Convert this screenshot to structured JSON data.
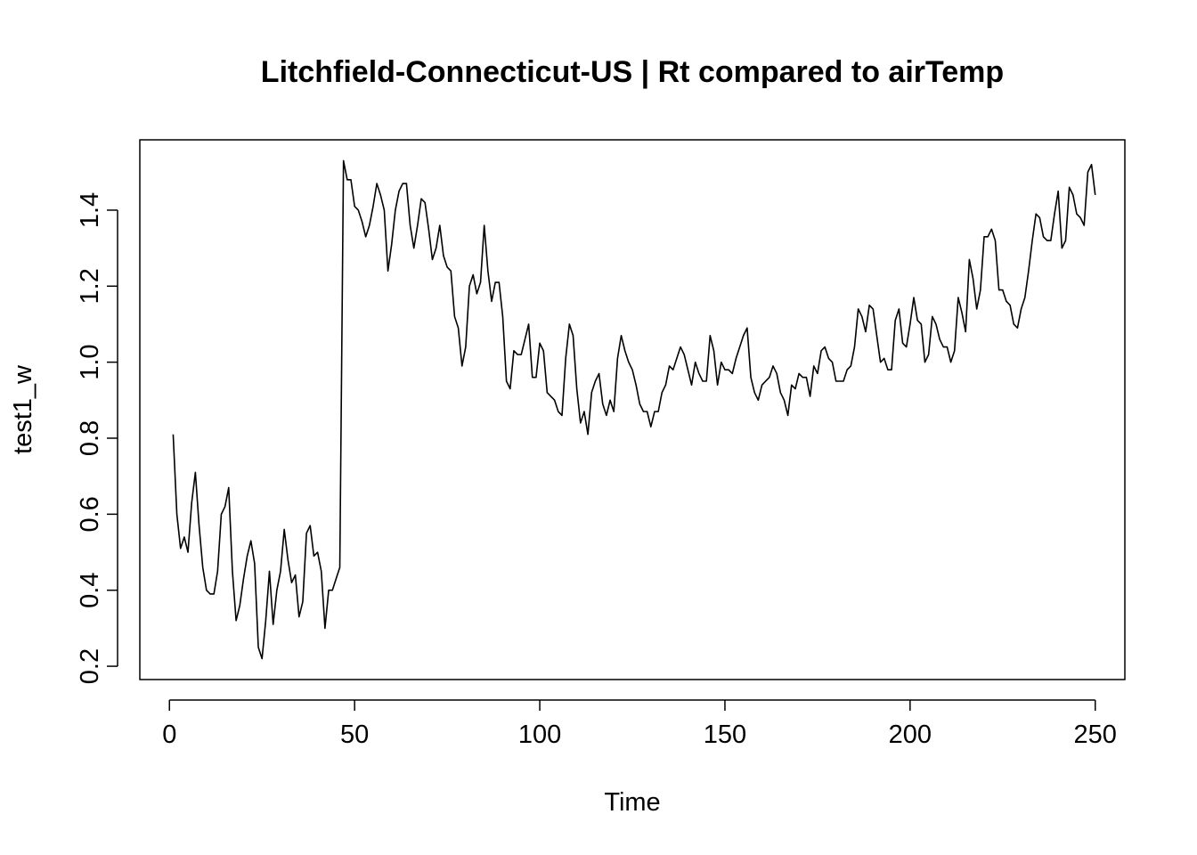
{
  "chart_data": {
    "type": "line",
    "title": "Litchfield-Connecticut-US | Rt compared to airTemp",
    "xlabel": "Time",
    "ylabel": "test1_w",
    "xlim": [
      -8,
      258
    ],
    "ylim": [
      0.165,
      1.585
    ],
    "x_ticks": [
      0,
      50,
      100,
      150,
      200,
      250
    ],
    "y_ticks": [
      0.2,
      0.4,
      0.6,
      0.8,
      1.0,
      1.2,
      1.4
    ],
    "x_tick_labels": [
      "0",
      "50",
      "100",
      "150",
      "200",
      "250"
    ],
    "y_tick_labels": [
      "0.2",
      "0.4",
      "0.6",
      "0.8",
      "1.0",
      "1.2",
      "1.4"
    ],
    "grid": false,
    "legend": "none",
    "series": [
      {
        "color": "#000000",
        "x_start": 1,
        "values": [
          0.81,
          0.6,
          0.51,
          0.54,
          0.5,
          0.63,
          0.71,
          0.57,
          0.46,
          0.4,
          0.39,
          0.39,
          0.45,
          0.6,
          0.62,
          0.67,
          0.45,
          0.32,
          0.36,
          0.43,
          0.49,
          0.53,
          0.47,
          0.25,
          0.22,
          0.32,
          0.45,
          0.31,
          0.4,
          0.45,
          0.56,
          0.48,
          0.42,
          0.44,
          0.33,
          0.37,
          0.55,
          0.57,
          0.49,
          0.5,
          0.45,
          0.3,
          0.4,
          0.4,
          0.43,
          0.46,
          1.53,
          1.48,
          1.48,
          1.41,
          1.4,
          1.37,
          1.33,
          1.36,
          1.41,
          1.47,
          1.44,
          1.4,
          1.24,
          1.31,
          1.4,
          1.45,
          1.47,
          1.47,
          1.36,
          1.3,
          1.36,
          1.43,
          1.42,
          1.35,
          1.27,
          1.3,
          1.36,
          1.28,
          1.25,
          1.24,
          1.12,
          1.09,
          0.99,
          1.04,
          1.2,
          1.23,
          1.18,
          1.21,
          1.36,
          1.24,
          1.16,
          1.21,
          1.21,
          1.12,
          0.95,
          0.93,
          1.03,
          1.02,
          1.02,
          1.06,
          1.1,
          0.96,
          0.96,
          1.05,
          1.03,
          0.92,
          0.91,
          0.9,
          0.87,
          0.86,
          1.01,
          1.1,
          1.07,
          0.93,
          0.84,
          0.87,
          0.81,
          0.92,
          0.95,
          0.97,
          0.89,
          0.86,
          0.9,
          0.87,
          1.01,
          1.07,
          1.03,
          1.0,
          0.98,
          0.94,
          0.89,
          0.87,
          0.87,
          0.83,
          0.87,
          0.87,
          0.92,
          0.94,
          0.99,
          0.98,
          1.01,
          1.04,
          1.02,
          0.98,
          0.94,
          1.0,
          0.97,
          0.95,
          0.95,
          1.07,
          1.03,
          0.94,
          1.0,
          0.98,
          0.98,
          0.97,
          1.01,
          1.04,
          1.07,
          1.09,
          0.96,
          0.92,
          0.9,
          0.94,
          0.95,
          0.96,
          0.99,
          0.97,
          0.92,
          0.9,
          0.86,
          0.94,
          0.93,
          0.97,
          0.96,
          0.96,
          0.91,
          0.99,
          0.97,
          1.03,
          1.04,
          1.01,
          1.0,
          0.95,
          0.95,
          0.95,
          0.98,
          0.99,
          1.04,
          1.14,
          1.12,
          1.08,
          1.15,
          1.14,
          1.07,
          1.0,
          1.01,
          0.98,
          0.98,
          1.11,
          1.14,
          1.05,
          1.04,
          1.1,
          1.17,
          1.11,
          1.1,
          1.0,
          1.02,
          1.12,
          1.1,
          1.06,
          1.04,
          1.04,
          1.0,
          1.03,
          1.17,
          1.13,
          1.08,
          1.27,
          1.22,
          1.14,
          1.19,
          1.33,
          1.33,
          1.35,
          1.32,
          1.19,
          1.19,
          1.16,
          1.15,
          1.1,
          1.09,
          1.14,
          1.17,
          1.24,
          1.32,
          1.39,
          1.38,
          1.33,
          1.32,
          1.32,
          1.39,
          1.45,
          1.3,
          1.32,
          1.46,
          1.44,
          1.39,
          1.38,
          1.36,
          1.5,
          1.52,
          1.44
        ]
      }
    ]
  }
}
